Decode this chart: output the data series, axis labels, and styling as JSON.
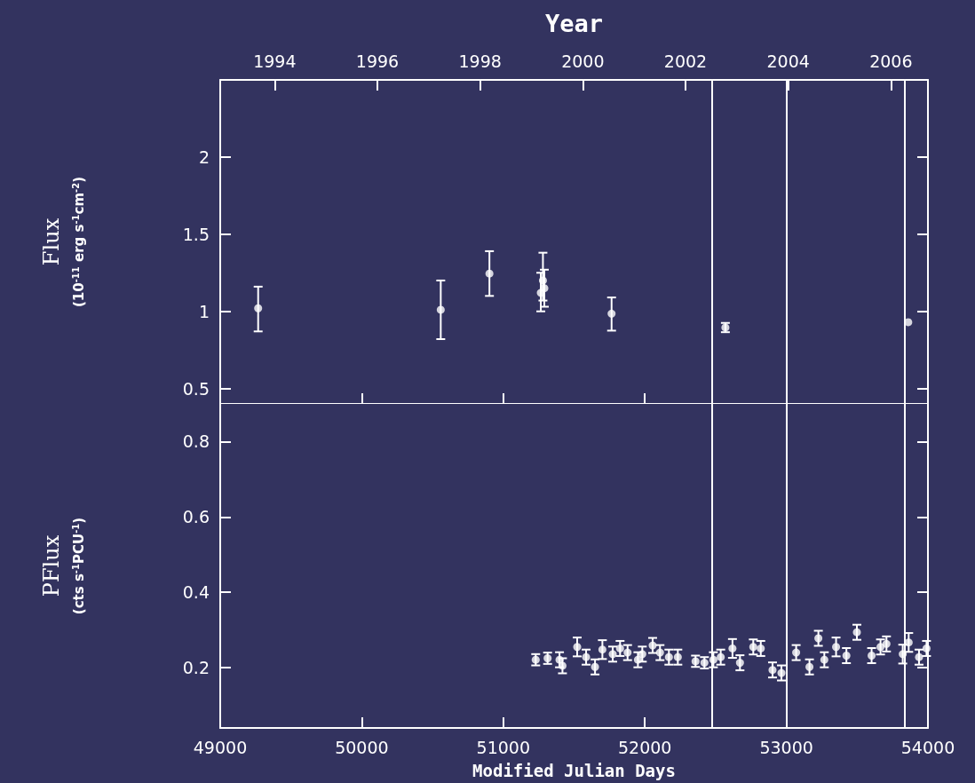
{
  "chart_data": [
    {
      "type": "scatter",
      "ylabel": "Flux\n(10$^{-11}$ erg s$^{-1}$cm$^{-2}$)",
      "x2label": "Year",
      "marker": "circle",
      "tick_labels": "y",
      "xlim": [
        49000,
        54000
      ],
      "xticks": [
        {
          "value": 49000,
          "label": null
        },
        {
          "value": 50000,
          "label": null
        },
        {
          "value": 51000,
          "label": null
        },
        {
          "value": 52000,
          "label": null
        },
        {
          "value": 53000,
          "label": null
        },
        {
          "value": 54000,
          "label": null
        }
      ],
      "x2lim": [
        1992.94,
        2006.72
      ],
      "x2ticks": [
        1994,
        1996,
        1998,
        2000,
        2002,
        2004,
        2006
      ],
      "ylim": [
        0.4,
        2.5
      ],
      "yticks": [
        0.5,
        1,
        1.5,
        2
      ],
      "ref_lines": [
        {
          "axis": "x",
          "value": 52475,
          "color": "#ffffff"
        },
        {
          "axis": "x",
          "value": 53003,
          "color": "#ffffff"
        },
        {
          "axis": "x",
          "value": 53837,
          "color": "#ffffff"
        }
      ],
      "series": [
        {
          "color": "#ffffff",
          "x": [
            49268,
            50558,
            50902,
            51265,
            51280,
            51290,
            51765,
            52569,
            53861
          ],
          "values": [
            1.02,
            1.01,
            1.245,
            1.12,
            1.2,
            1.15,
            0.985,
            0.895,
            0.93
          ],
          "errors": [
            [
              0.87,
              1.16
            ],
            [
              0.82,
              1.2
            ],
            [
              1.1,
              1.39
            ],
            [
              1.0,
              1.25
            ],
            [
              1.07,
              1.38
            ],
            [
              1.03,
              1.27
            ],
            [
              0.875,
              1.09
            ],
            [
              0.865,
              0.925
            ],
            null
          ]
        }
      ]
    },
    {
      "type": "scatter",
      "ylabel": "PFlux\n(cts s$^{-1}$PCU$^{-1}$)",
      "xlabel": "Modified Julian Days",
      "marker": "circle",
      "xlim": [
        49000,
        54000
      ],
      "xticks": [
        49000,
        50000,
        51000,
        52000,
        53000,
        54000
      ],
      "ylim": [
        0.04,
        0.9
      ],
      "yticks": [
        0.2,
        0.4,
        0.6,
        0.8
      ],
      "ref_lines": [
        {
          "axis": "x",
          "value": 52475,
          "color": "#ffffff"
        },
        {
          "axis": "x",
          "value": 53003,
          "color": "#ffffff"
        },
        {
          "axis": "x",
          "value": 53837,
          "color": "#ffffff"
        }
      ],
      "series": [
        {
          "color": "#ffffff",
          "x": [
            51229,
            51313,
            51397,
            51418,
            51522,
            51585,
            51648,
            51700,
            51773,
            51825,
            51878,
            51951,
            51982,
            52055,
            52107,
            52170,
            52233,
            52358,
            52421,
            52484,
            52536,
            52619,
            52672,
            52766,
            52819,
            52902,
            52965,
            53069,
            53163,
            53226,
            53268,
            53351,
            53424,
            53498,
            53602,
            53665,
            53707,
            53822,
            53864,
            53937,
            53990
          ],
          "values": [
            0.221,
            0.225,
            0.221,
            0.205,
            0.255,
            0.228,
            0.202,
            0.248,
            0.236,
            0.251,
            0.24,
            0.221,
            0.236,
            0.259,
            0.24,
            0.228,
            0.228,
            0.217,
            0.213,
            0.221,
            0.228,
            0.251,
            0.213,
            0.255,
            0.251,
            0.194,
            0.186,
            0.24,
            0.202,
            0.278,
            0.221,
            0.255,
            0.232,
            0.294,
            0.232,
            0.255,
            0.263,
            0.236,
            0.267,
            0.228,
            0.251
          ],
          "errors": [
            0.015,
            0.015,
            0.02,
            0.02,
            0.025,
            0.02,
            0.02,
            0.025,
            0.02,
            0.02,
            0.02,
            0.02,
            0.02,
            0.02,
            0.02,
            0.02,
            0.02,
            0.015,
            0.015,
            0.02,
            0.02,
            0.025,
            0.02,
            0.02,
            0.02,
            0.02,
            0.02,
            0.02,
            0.02,
            0.02,
            0.02,
            0.025,
            0.02,
            0.02,
            0.02,
            0.02,
            0.02,
            0.025,
            0.025,
            0.02,
            0.02
          ]
        }
      ]
    }
  ]
}
